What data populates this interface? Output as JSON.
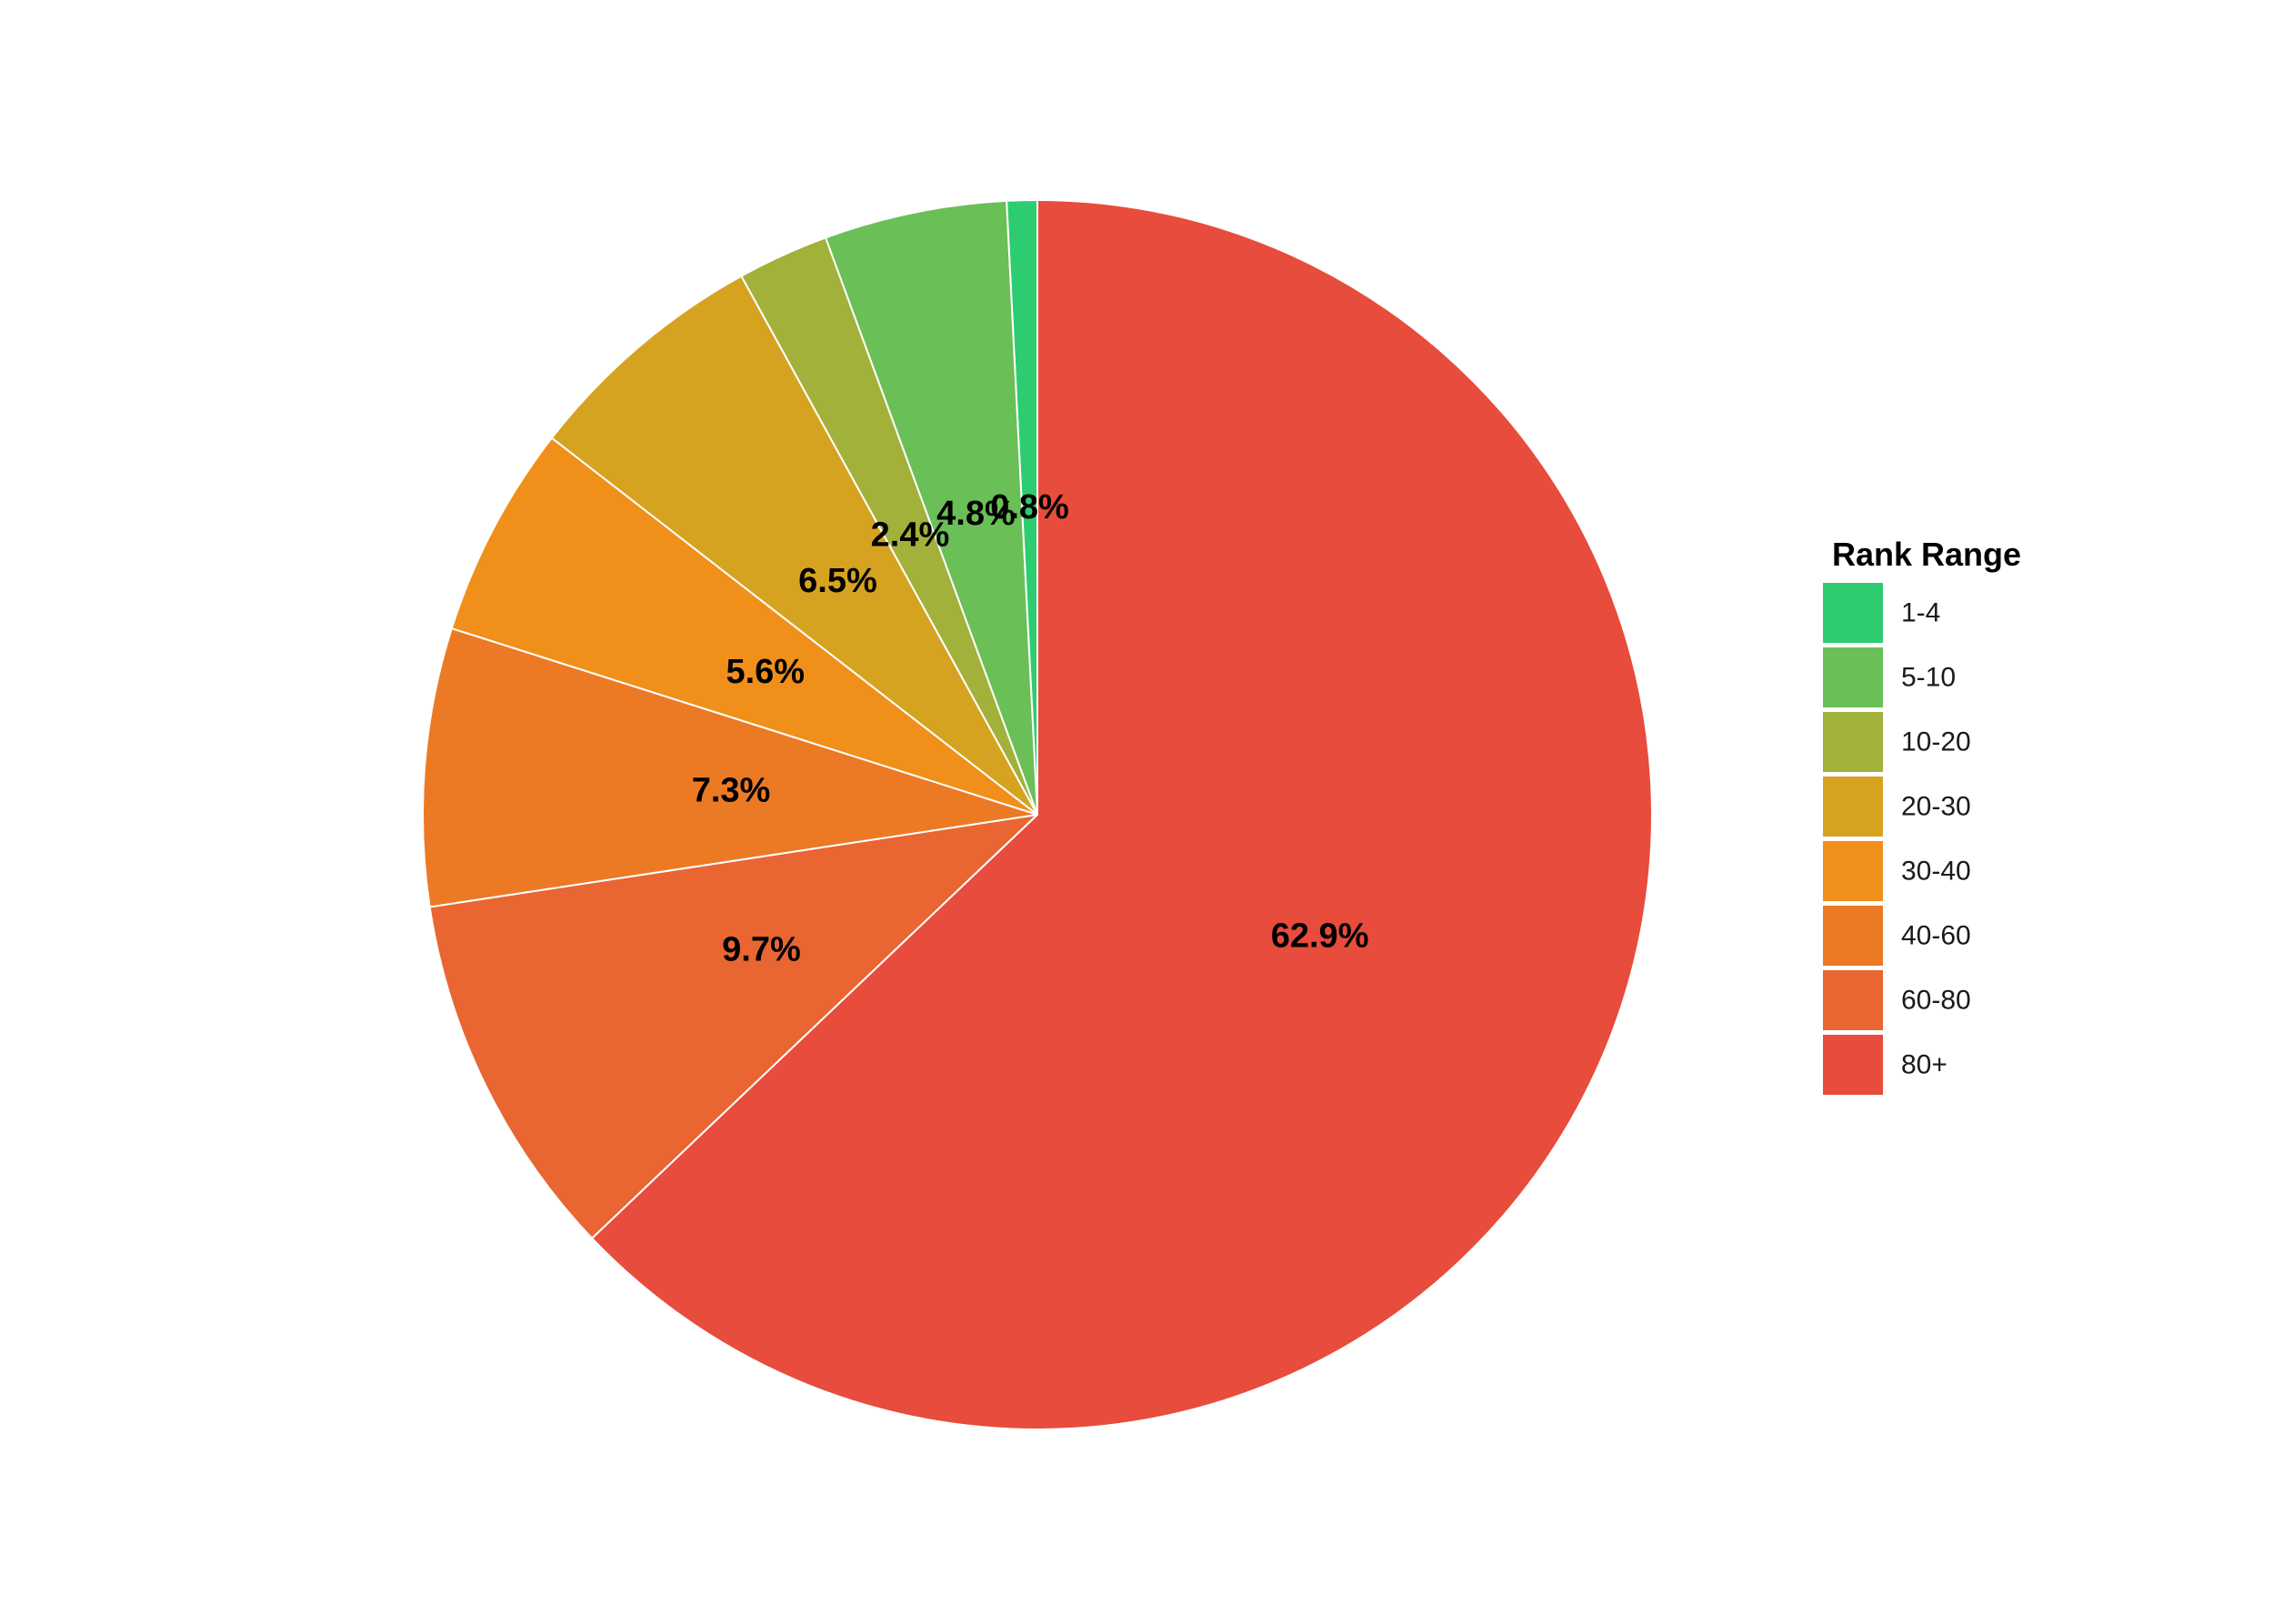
{
  "chart_data": {
    "type": "pie",
    "categories": [
      "1-4",
      "5-10",
      "10-20",
      "20-30",
      "30-40",
      "40-60",
      "60-80",
      "80+"
    ],
    "values": [
      0.8,
      4.8,
      2.4,
      6.5,
      5.6,
      7.3,
      9.7,
      62.9
    ],
    "labels": [
      "0.8%",
      "4.8%",
      "2.4%",
      "6.5%",
      "5.6%",
      "7.3%",
      "9.7%",
      "62.9%"
    ],
    "colors": [
      "#2ECC71",
      "#6ABF57",
      "#A2B13A",
      "#D6A321",
      "#F0901A",
      "#EC7A25",
      "#E96532",
      "#E74C3C"
    ],
    "direction": "counterclockwise",
    "start_angle": "12 o'clock",
    "legend": {
      "title": "Rank Range",
      "position": "right"
    }
  }
}
